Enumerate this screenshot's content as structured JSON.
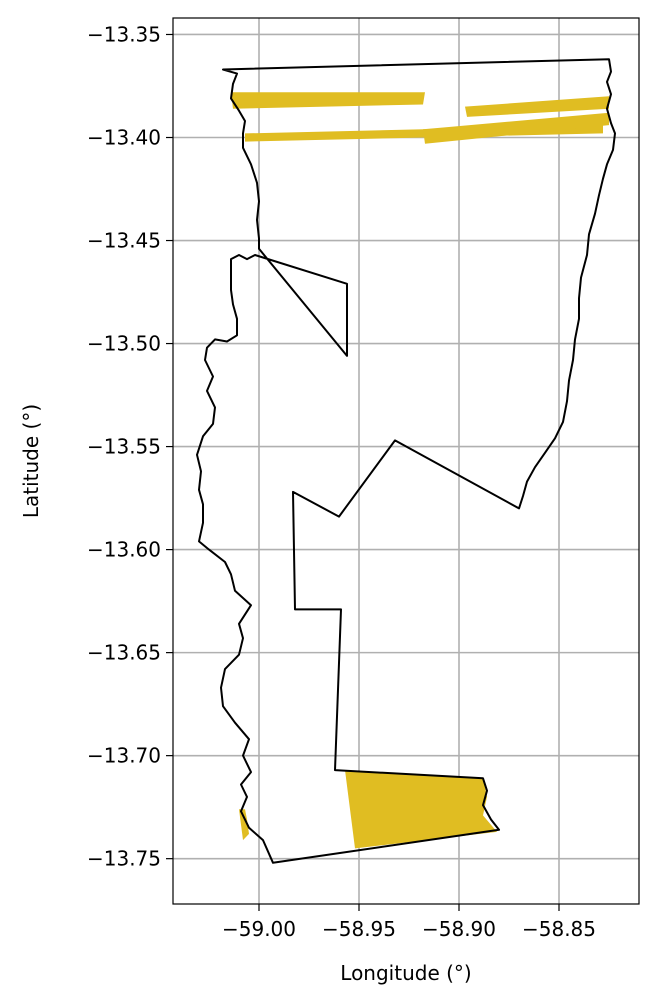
{
  "chart_data": {
    "type": "map",
    "xlabel": "Longitude (°)",
    "ylabel": "Latitude (°)",
    "xlim": [
      -59.043,
      -58.81
    ],
    "ylim": [
      -13.772,
      -13.342
    ],
    "grid": true,
    "colors": {
      "outline": "#000000",
      "fill": "#e0bd22",
      "grid": "#b0b0b0"
    },
    "x_ticks": [
      {
        "value": -59.0,
        "label": "−59.00"
      },
      {
        "value": -58.95,
        "label": "−58.95"
      },
      {
        "value": -58.9,
        "label": "−58.90"
      },
      {
        "value": -58.85,
        "label": "−58.85"
      }
    ],
    "y_ticks": [
      {
        "value": -13.35,
        "label": "−13.35"
      },
      {
        "value": -13.4,
        "label": "−13.40"
      },
      {
        "value": -13.45,
        "label": "−13.45"
      },
      {
        "value": -13.5,
        "label": "−13.50"
      },
      {
        "value": -13.55,
        "label": "−13.55"
      },
      {
        "value": -13.6,
        "label": "−13.60"
      },
      {
        "value": -13.65,
        "label": "−13.65"
      },
      {
        "value": -13.7,
        "label": "−13.70"
      },
      {
        "value": -13.75,
        "label": "−13.75"
      }
    ],
    "boundary": [
      [
        -59.018,
        -13.367
      ],
      [
        -58.825,
        -13.362
      ],
      [
        -58.824,
        -13.368
      ],
      [
        -58.826,
        -13.373
      ],
      [
        -58.824,
        -13.379
      ],
      [
        -58.826,
        -13.386
      ],
      [
        -58.824,
        -13.393
      ],
      [
        -58.822,
        -13.398
      ],
      [
        -58.823,
        -13.406
      ],
      [
        -58.826,
        -13.413
      ],
      [
        -58.828,
        -13.42
      ],
      [
        -58.83,
        -13.428
      ],
      [
        -58.832,
        -13.437
      ],
      [
        -58.835,
        -13.447
      ],
      [
        -58.836,
        -13.457
      ],
      [
        -58.839,
        -13.468
      ],
      [
        -58.84,
        -13.478
      ],
      [
        -58.84,
        -13.488
      ],
      [
        -58.842,
        -13.498
      ],
      [
        -58.843,
        -13.508
      ],
      [
        -58.845,
        -13.518
      ],
      [
        -58.846,
        -13.528
      ],
      [
        -58.848,
        -13.538
      ],
      [
        -58.852,
        -13.546
      ],
      [
        -58.857,
        -13.553
      ],
      [
        -58.862,
        -13.56
      ],
      [
        -58.866,
        -13.567
      ],
      [
        -58.868,
        -13.574
      ],
      [
        -58.87,
        -13.58
      ],
      [
        -58.932,
        -13.547
      ],
      [
        -58.96,
        -13.584
      ],
      [
        -58.983,
        -13.572
      ],
      [
        -58.982,
        -13.629
      ],
      [
        -58.959,
        -13.629
      ],
      [
        -58.962,
        -13.707
      ],
      [
        -58.888,
        -13.711
      ],
      [
        -58.886,
        -13.717
      ],
      [
        -58.888,
        -13.724
      ],
      [
        -58.884,
        -13.731
      ],
      [
        -58.88,
        -13.736
      ],
      [
        -58.993,
        -13.752
      ],
      [
        -58.998,
        -13.741
      ],
      [
        -59.005,
        -13.735
      ],
      [
        -59.009,
        -13.727
      ],
      [
        -59.006,
        -13.72
      ],
      [
        -59.009,
        -13.714
      ],
      [
        -59.004,
        -13.708
      ],
      [
        -59.008,
        -13.7
      ],
      [
        -59.005,
        -13.692
      ],
      [
        -59.012,
        -13.684
      ],
      [
        -59.018,
        -13.676
      ],
      [
        -59.019,
        -13.667
      ],
      [
        -59.017,
        -13.658
      ],
      [
        -59.01,
        -13.651
      ],
      [
        -59.008,
        -13.643
      ],
      [
        -59.01,
        -13.636
      ],
      [
        -59.004,
        -13.627
      ],
      [
        -59.012,
        -13.62
      ],
      [
        -59.014,
        -13.612
      ],
      [
        -59.017,
        -13.606
      ],
      [
        -59.025,
        -13.6
      ],
      [
        -59.03,
        -13.596
      ],
      [
        -59.028,
        -13.587
      ],
      [
        -59.028,
        -13.578
      ],
      [
        -59.03,
        -13.571
      ],
      [
        -59.029,
        -13.562
      ],
      [
        -59.031,
        -13.554
      ],
      [
        -59.028,
        -13.545
      ],
      [
        -59.023,
        -13.539
      ],
      [
        -59.022,
        -13.531
      ],
      [
        -59.026,
        -13.523
      ],
      [
        -59.023,
        -13.516
      ],
      [
        -59.027,
        -13.508
      ],
      [
        -59.026,
        -13.502
      ],
      [
        -59.022,
        -13.498
      ],
      [
        -59.016,
        -13.499
      ],
      [
        -59.011,
        -13.496
      ],
      [
        -59.011,
        -13.488
      ],
      [
        -59.013,
        -13.481
      ],
      [
        -59.014,
        -13.474
      ],
      [
        -59.014,
        -13.466
      ],
      [
        -59.014,
        -13.459
      ],
      [
        -59.01,
        -13.457
      ],
      [
        -59.006,
        -13.459
      ],
      [
        -59.002,
        -13.457
      ],
      [
        -58.956,
        -13.471
      ],
      [
        -58.956,
        -13.506
      ],
      [
        -59.0,
        -13.454
      ],
      [
        -59.0,
        -13.449
      ],
      [
        -59.001,
        -13.44
      ],
      [
        -59.0,
        -13.431
      ],
      [
        -59.001,
        -13.422
      ],
      [
        -59.004,
        -13.413
      ],
      [
        -59.008,
        -13.405
      ],
      [
        -59.008,
        -13.398
      ],
      [
        -59.007,
        -13.392
      ],
      [
        -59.01,
        -13.387
      ],
      [
        -59.014,
        -13.381
      ],
      [
        -59.013,
        -13.374
      ],
      [
        -59.011,
        -13.369
      ],
      [
        -59.018,
        -13.367
      ]
    ],
    "filled_areas": [
      [
        [
          -59.014,
          -13.378
        ],
        [
          -58.917,
          -13.378
        ],
        [
          -58.918,
          -13.384
        ],
        [
          -59.013,
          -13.386
        ]
      ],
      [
        [
          -59.007,
          -13.398
        ],
        [
          -58.828,
          -13.394
        ],
        [
          -58.828,
          -13.398
        ],
        [
          -59.007,
          -13.402
        ]
      ],
      [
        [
          -58.897,
          -13.385
        ],
        [
          -58.825,
          -13.38
        ],
        [
          -58.825,
          -13.386
        ],
        [
          -58.896,
          -13.39
        ]
      ],
      [
        [
          -58.918,
          -13.396
        ],
        [
          -58.825,
          -13.388
        ],
        [
          -58.825,
          -13.394
        ],
        [
          -58.917,
          -13.403
        ]
      ],
      [
        [
          -58.957,
          -13.707
        ],
        [
          -58.888,
          -13.711
        ],
        [
          -58.886,
          -13.72
        ],
        [
          -58.888,
          -13.729
        ],
        [
          -58.881,
          -13.737
        ],
        [
          -58.952,
          -13.745
        ]
      ],
      [
        [
          -59.01,
          -13.726
        ],
        [
          -59.007,
          -13.726
        ],
        [
          -59.006,
          -13.731
        ],
        [
          -59.005,
          -13.738
        ],
        [
          -59.008,
          -13.741
        ]
      ]
    ]
  }
}
